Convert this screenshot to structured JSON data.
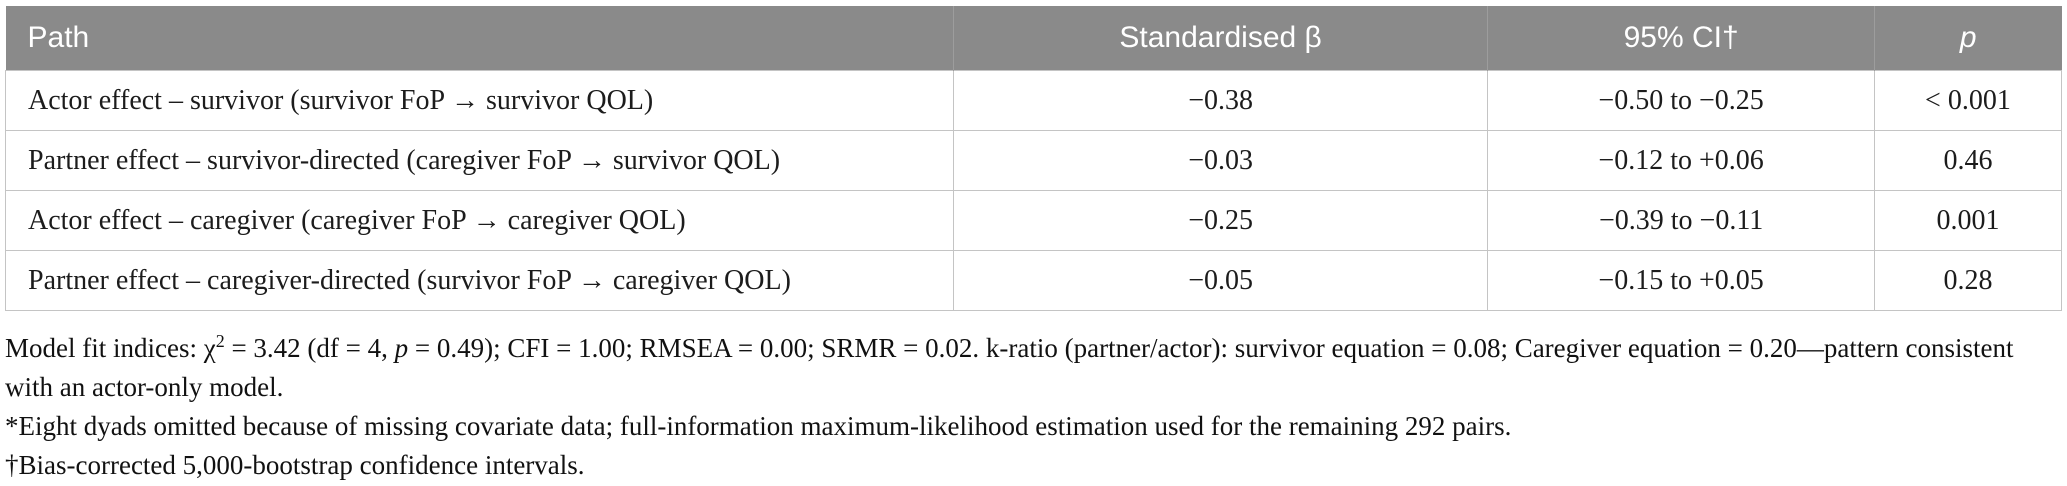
{
  "table": {
    "columns": {
      "path_label": "Path",
      "beta_label": "Standardised β",
      "ci_label": "95% CI†",
      "p_label": "p"
    },
    "rows": [
      {
        "path": "Actor effect – survivor (survivor FoP → survivor QOL)",
        "beta": "−0.38",
        "ci": "−0.50 to −0.25",
        "p": "< 0.001"
      },
      {
        "path": "Partner effect – survivor-directed (caregiver FoP → survivor QOL)",
        "beta": "−0.03",
        "ci": "−0.12 to +0.06",
        "p": "0.46"
      },
      {
        "path": "Actor effect – caregiver (caregiver FoP → caregiver QOL)",
        "beta": "−0.25",
        "ci": "−0.39 to −0.11",
        "p": "0.001"
      },
      {
        "path": "Partner effect – caregiver-directed (survivor FoP → caregiver QOL)",
        "beta": "−0.05",
        "ci": "−0.15 to +0.05",
        "p": "0.28"
      }
    ]
  },
  "notes": {
    "model_fit": {
      "part1": "Model fit indices: χ",
      "chi_sup": "2",
      "part2": " = 3.42 (df = 4, ",
      "p_italic": "p",
      "part3": " = 0.49); CFI = 1.00; RMSEA = 0.00; SRMR = 0.02. k-ratio (partner/actor): survivor equation = 0.08; Caregiver equation = 0.20—pattern consistent with an actor-only model."
    },
    "asterisk_note": "*Eight dyads omitted because of missing covariate data; full-information maximum-likelihood estimation used for the remaining 292 pairs.",
    "dagger_note": "†Bias-corrected 5,000-bootstrap confidence intervals."
  },
  "colors": {
    "header_bg": "#8a8a8a",
    "header_text": "#ffffff",
    "border": "#c4c4c4",
    "body_text": "#1c1c1c"
  }
}
